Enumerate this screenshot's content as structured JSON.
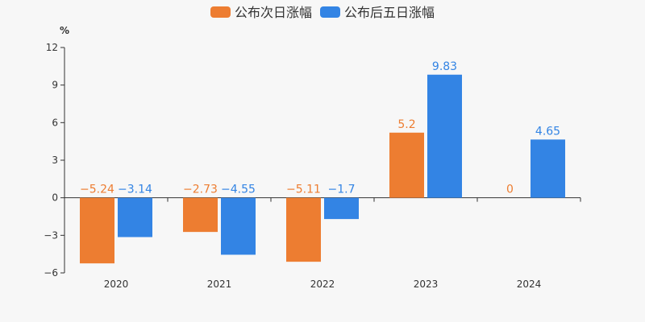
{
  "chart_data": {
    "type": "bar",
    "unit": "%",
    "categories": [
      "2020",
      "2021",
      "2022",
      "2023",
      "2024"
    ],
    "series": [
      {
        "name": "公布次日涨幅",
        "color": "#ED7D31",
        "values": [
          -5.24,
          -2.73,
          -5.11,
          5.2,
          0
        ],
        "labels": [
          "−5.24",
          "−2.73",
          "−5.11",
          "5.2",
          "0"
        ]
      },
      {
        "name": "公布后五日涨幅",
        "color": "#3384E4",
        "values": [
          -3.14,
          -4.55,
          -1.7,
          9.83,
          4.65
        ],
        "labels": [
          "−3.14",
          "−4.55",
          "−1.7",
          "9.83",
          "4.65"
        ]
      }
    ],
    "ylim": [
      -6,
      12
    ],
    "yticks": [
      -6,
      -3,
      0,
      3,
      6,
      9,
      12
    ],
    "ytick_labels": [
      "−6",
      "−3",
      "0",
      "3",
      "6",
      "9",
      "12"
    ],
    "legend_position": "top-center",
    "grid": false
  }
}
